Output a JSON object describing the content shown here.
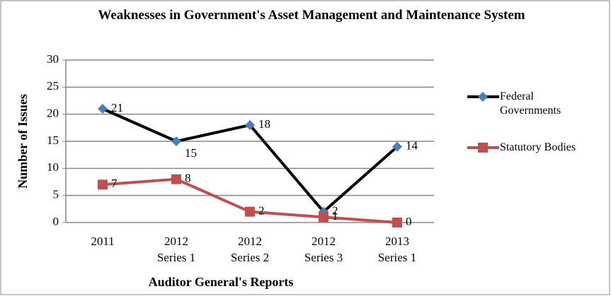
{
  "chart_data": {
    "type": "line",
    "title": "Weaknesses in Government's Asset Management and Maintenance System",
    "x_label": "Auditor General's Reports",
    "y_label": "Number of Issues",
    "categories": [
      "2011",
      "2012\nSeries 1",
      "2012\nSeries 2",
      "2012\nSeries 3",
      "2013\nSeries 1"
    ],
    "series": [
      {
        "name": "Federal Governments",
        "color": "#000000",
        "marker_color": "#4a7ebb",
        "marker": "diamond",
        "values": [
          21,
          15,
          18,
          2,
          14
        ]
      },
      {
        "name": "Statutory Bodies",
        "color": "#c0504d",
        "marker_color": "#c0504d",
        "marker": "square",
        "values": [
          7,
          8,
          2,
          1,
          0
        ]
      }
    ],
    "ylim": [
      0,
      30
    ],
    "yticks": [
      0,
      5,
      10,
      15,
      20,
      25,
      30
    ],
    "grid": true,
    "legend": "right"
  }
}
